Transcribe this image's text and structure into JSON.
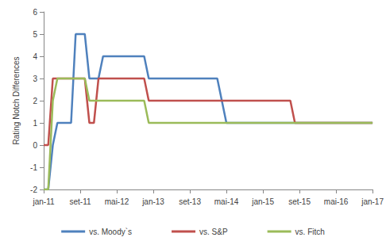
{
  "chart_data": {
    "type": "line",
    "y_label": "Rating Notch Differences",
    "categories": [
      "jan-11",
      null,
      null,
      null,
      null,
      null,
      null,
      null,
      "set-11",
      null,
      null,
      null,
      null,
      null,
      null,
      null,
      "mai-12",
      null,
      null,
      null,
      null,
      null,
      null,
      null,
      "jan-13",
      null,
      null,
      null,
      null,
      null,
      null,
      null,
      "set-13",
      null,
      null,
      null,
      null,
      null,
      null,
      null,
      "mai-14",
      null,
      null,
      null,
      null,
      null,
      null,
      null,
      "jan-15",
      null,
      null,
      null,
      null,
      null,
      null,
      null,
      "set-15",
      null,
      null,
      null,
      null,
      null,
      null,
      null,
      "mai-16",
      null,
      null,
      null,
      null,
      null,
      null,
      null,
      "jan-17"
    ],
    "series": [
      {
        "name": "vs. Moody`s",
        "color": "#4f81bd",
        "values": [
          -2,
          -2,
          0,
          1,
          1,
          1,
          1,
          5,
          5,
          5,
          3,
          3,
          3,
          4,
          4,
          4,
          4,
          4,
          4,
          4,
          4,
          4,
          4,
          3,
          3,
          3,
          3,
          3,
          3,
          3,
          3,
          3,
          3,
          3,
          3,
          3,
          3,
          3,
          3,
          2,
          1,
          1,
          1,
          1,
          1,
          1,
          1,
          1,
          1,
          1,
          1,
          1,
          1,
          1,
          1,
          1,
          1,
          1,
          1,
          1,
          1,
          1,
          1,
          1,
          1,
          1,
          1,
          1,
          1,
          1,
          1,
          1,
          1
        ]
      },
      {
        "name": "vs. S&P",
        "color": "#c0504d",
        "values": [
          0,
          0,
          3,
          3,
          3,
          3,
          3,
          3,
          3,
          3,
          1,
          1,
          3,
          3,
          3,
          3,
          3,
          3,
          3,
          3,
          3,
          3,
          3,
          2,
          2,
          2,
          2,
          2,
          2,
          2,
          2,
          2,
          2,
          2,
          2,
          2,
          2,
          2,
          2,
          2,
          2,
          2,
          2,
          2,
          2,
          2,
          2,
          2,
          2,
          2,
          2,
          2,
          2,
          2,
          2,
          1,
          1,
          1,
          1,
          1,
          1,
          1,
          1,
          1,
          1,
          1,
          1,
          1,
          1,
          1,
          1,
          1,
          1
        ]
      },
      {
        "name": "vs. Fitch",
        "color": "#9bbb59",
        "values": [
          -2,
          -2,
          2,
          3,
          3,
          3,
          3,
          3,
          3,
          3,
          2,
          2,
          2,
          2,
          2,
          2,
          2,
          2,
          2,
          2,
          2,
          2,
          2,
          1,
          1,
          1,
          1,
          1,
          1,
          1,
          1,
          1,
          1,
          1,
          1,
          1,
          1,
          1,
          1,
          1,
          1,
          1,
          1,
          1,
          1,
          1,
          1,
          1,
          1,
          1,
          1,
          1,
          1,
          1,
          1,
          1,
          1,
          1,
          1,
          1,
          1,
          1,
          1,
          1,
          1,
          1,
          1,
          1,
          1,
          1,
          1,
          1,
          1
        ]
      }
    ],
    "ylim": [
      -2,
      6
    ],
    "yticks": [
      -2,
      -1,
      0,
      1,
      2,
      3,
      4,
      5,
      6
    ],
    "grid": false,
    "legend": "bottom"
  }
}
